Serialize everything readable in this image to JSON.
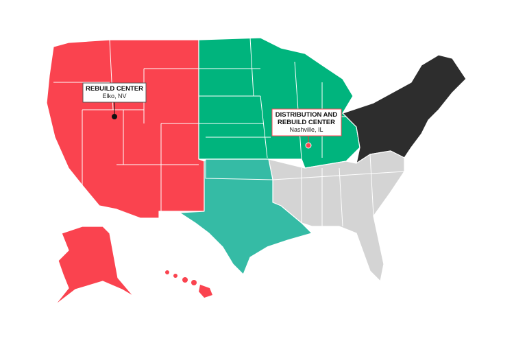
{
  "callouts": [
    {
      "title_lines": [
        "REBUILD CENTER"
      ],
      "subtitle": "Elko, NV"
    },
    {
      "title_lines": [
        "DISTRIBUTION AND",
        "REBUILD CENTER"
      ],
      "subtitle": "Nashville, IL"
    }
  ]
}
